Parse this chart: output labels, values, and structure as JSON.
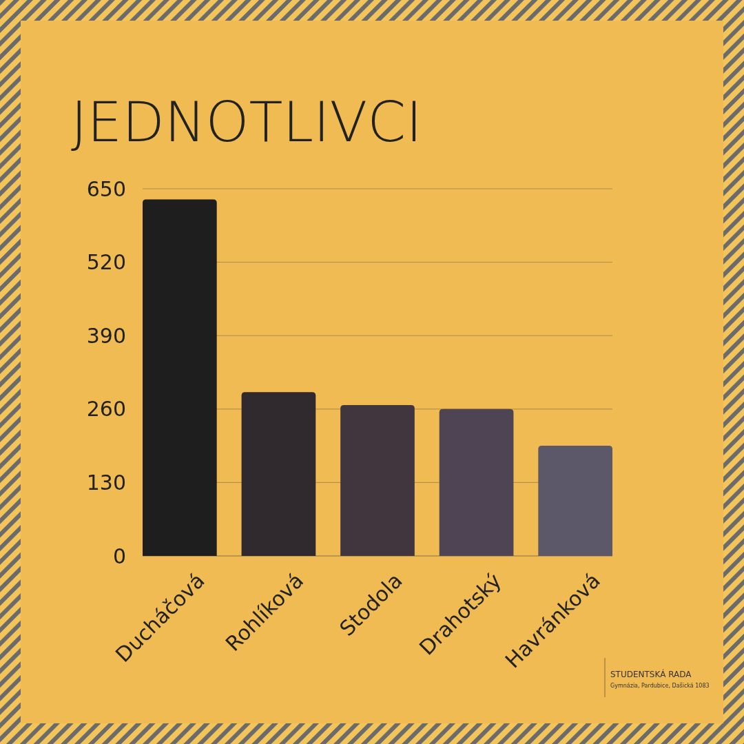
{
  "chart_data": {
    "type": "bar",
    "title": "JEDNOTLIVCI",
    "categories": [
      "Ducháčová",
      "Rohlíková",
      "Stodola",
      "Drahotský",
      "Havránková"
    ],
    "values": [
      631,
      290,
      267,
      260,
      195
    ],
    "colors": [
      "#1f1e1e",
      "#302a2e",
      "#41363e",
      "#4f4454",
      "#5c5769"
    ],
    "ylim": [
      0,
      650
    ],
    "yticks": [
      0,
      130,
      260,
      390,
      520,
      650
    ],
    "grid": "y",
    "annotations": [
      "STUDENTSKÁ RADA",
      "Gymnázia, Pardubice, Dašická 1083"
    ]
  }
}
